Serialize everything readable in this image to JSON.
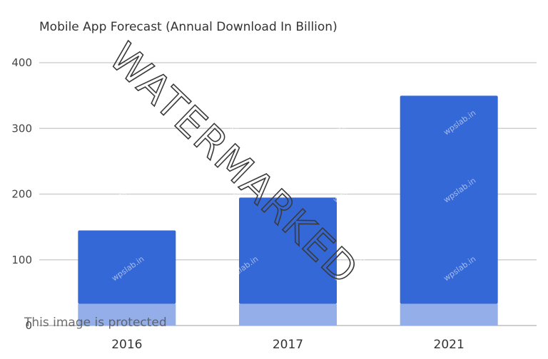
{
  "chart_data": {
    "type": "bar",
    "title": "Mobile App Forecast (Annual Download In Billion)",
    "categories": [
      "2016",
      "2017",
      "2021"
    ],
    "series": [
      {
        "values": [
          33,
          33,
          33
        ],
        "color": "#93aee8"
      },
      {
        "values": [
          115,
          165,
          320
        ],
        "color": "#3468d6"
      }
    ],
    "stacked": true,
    "yticks": [
      "0",
      "100",
      "200",
      "300",
      "400"
    ],
    "ylim": [
      0,
      400
    ],
    "grid": true,
    "legend": "none"
  },
  "watermark": {
    "main": "WATERMARKED",
    "protected": "This image is protected",
    "site": "wpslab.in"
  }
}
